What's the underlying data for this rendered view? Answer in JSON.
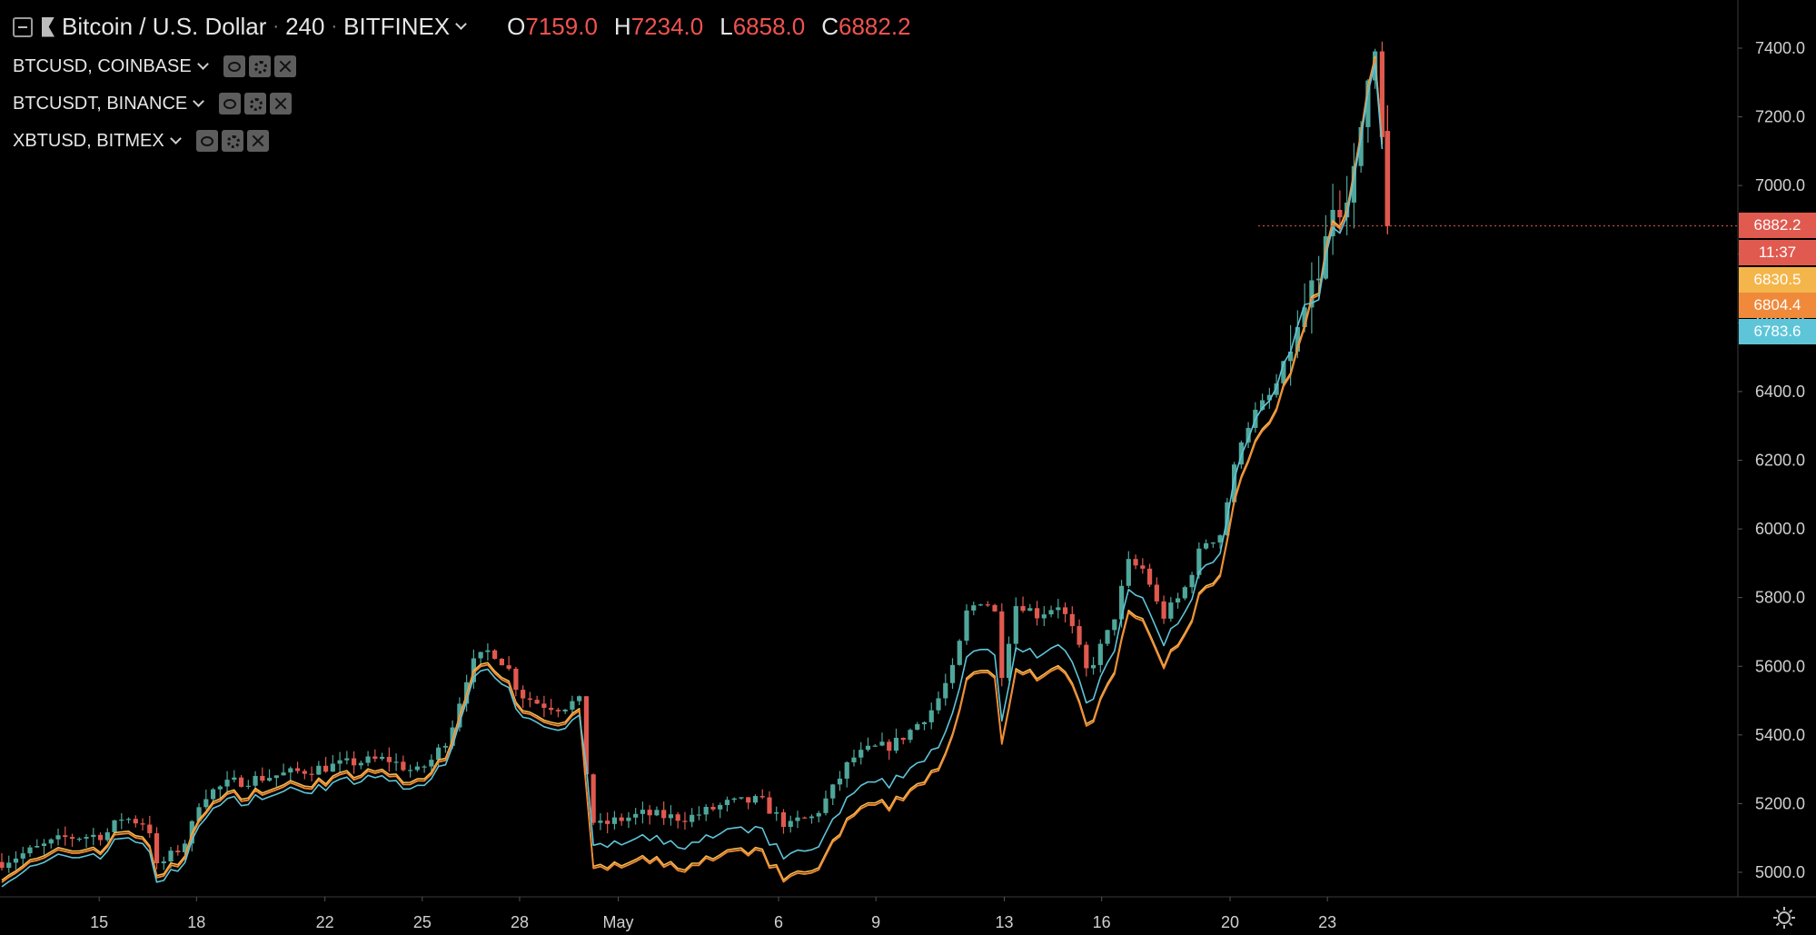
{
  "header": {
    "symbol": "Bitcoin / U.S. Dollar",
    "interval": "240",
    "exchange": "BITFINEX",
    "ohlc": {
      "o_label": "O",
      "o_value": "7159.0",
      "h_label": "H",
      "h_value": "7234.0",
      "l_label": "L",
      "l_value": "6858.0",
      "c_label": "C",
      "c_value": "6882.2"
    }
  },
  "overlays": [
    {
      "label": "BTCUSD, COINBASE"
    },
    {
      "label": "BTCUSDT, BINANCE"
    },
    {
      "label": "XBTUSD, BITMEX"
    }
  ],
  "price_tags": [
    {
      "text": "6882.2",
      "color": "#e05a50"
    },
    {
      "text": "11:37",
      "color": "#e05a50"
    },
    {
      "text": "6830.5",
      "color": "#f4b54a"
    },
    {
      "text": "6804.4",
      "color": "#f0893a"
    },
    {
      "text": "6783.6",
      "color": "#5ec5d9"
    }
  ],
  "colors": {
    "up": "#4fa69a",
    "down": "#e0594f",
    "coinbase_line": "#f5b94e",
    "binance_line": "#f08a35",
    "bitmex_line": "#5ec5d9",
    "background": "#000000"
  },
  "chart_data": {
    "type": "line",
    "ylim": [
      4950,
      7520
    ],
    "yticks": [
      "7400.0",
      "7200.0",
      "7000.0",
      "6800.0",
      "6600.0",
      "6400.0",
      "6200.0",
      "6000.0",
      "5800.0",
      "5600.0",
      "5400.0",
      "5200.0",
      "5000.0"
    ],
    "xticks": [
      "15",
      "18",
      "22",
      "25",
      "28",
      "May",
      "6",
      "9",
      "13",
      "16",
      "20",
      "23"
    ],
    "candles_x_step": 0.17,
    "series": [
      {
        "name": "BTCUSD, COINBASE"
      },
      {
        "name": "BTCUSDT, BINANCE"
      },
      {
        "name": "XBTUSD, BITMEX"
      }
    ],
    "anchors": [
      [
        0.0,
        5030
      ],
      [
        1.5,
        5100
      ],
      [
        2.5,
        5110
      ],
      [
        2.9,
        5160
      ],
      [
        3.55,
        5140
      ],
      [
        3.7,
        5010
      ],
      [
        4.2,
        5060
      ],
      [
        4.5,
        5100
      ],
      [
        4.8,
        5220
      ],
      [
        5.5,
        5260
      ],
      [
        6.5,
        5280
      ],
      [
        7.5,
        5300
      ],
      [
        8.5,
        5320
      ],
      [
        9.3,
        5330
      ],
      [
        10.0,
        5290
      ],
      [
        10.4,
        5330
      ],
      [
        10.8,
        5400
      ],
      [
        11.3,
        5600
      ],
      [
        11.8,
        5650
      ],
      [
        12.2,
        5600
      ],
      [
        12.5,
        5520
      ],
      [
        13.0,
        5490
      ],
      [
        13.5,
        5480
      ],
      [
        13.9,
        5500
      ],
      [
        14.0,
        5490
      ],
      [
        14.1,
        5300
      ],
      [
        14.3,
        5130
      ],
      [
        14.8,
        5150
      ],
      [
        15.5,
        5170
      ],
      [
        16.2,
        5160
      ],
      [
        16.6,
        5160
      ],
      [
        17.5,
        5200
      ],
      [
        18.3,
        5210
      ],
      [
        19.0,
        5130
      ],
      [
        19.2,
        5150
      ],
      [
        19.6,
        5160
      ],
      [
        20.0,
        5230
      ],
      [
        20.5,
        5330
      ],
      [
        21.0,
        5360
      ],
      [
        21.5,
        5370
      ],
      [
        22.0,
        5420
      ],
      [
        22.5,
        5480
      ],
      [
        23.0,
        5600
      ],
      [
        23.3,
        5760
      ],
      [
        23.7,
        5800
      ],
      [
        24.0,
        5750
      ],
      [
        24.1,
        5560
      ],
      [
        24.5,
        5790
      ],
      [
        25.0,
        5750
      ],
      [
        25.5,
        5780
      ],
      [
        25.8,
        5720
      ],
      [
        26.2,
        5580
      ],
      [
        26.8,
        5720
      ],
      [
        27.2,
        5900
      ],
      [
        27.6,
        5880
      ],
      [
        28.0,
        5740
      ],
      [
        28.5,
        5810
      ],
      [
        29.0,
        5960
      ],
      [
        29.4,
        5980
      ],
      [
        29.9,
        6260
      ],
      [
        30.2,
        6330
      ],
      [
        30.7,
        6400
      ],
      [
        31.2,
        6550
      ],
      [
        31.6,
        6700
      ],
      [
        32.0,
        6850
      ],
      [
        32.4,
        6960
      ],
      [
        32.8,
        7150
      ],
      [
        33.1,
        7420
      ],
      [
        33.3,
        7180
      ],
      [
        33.5,
        6860
      ]
    ]
  }
}
